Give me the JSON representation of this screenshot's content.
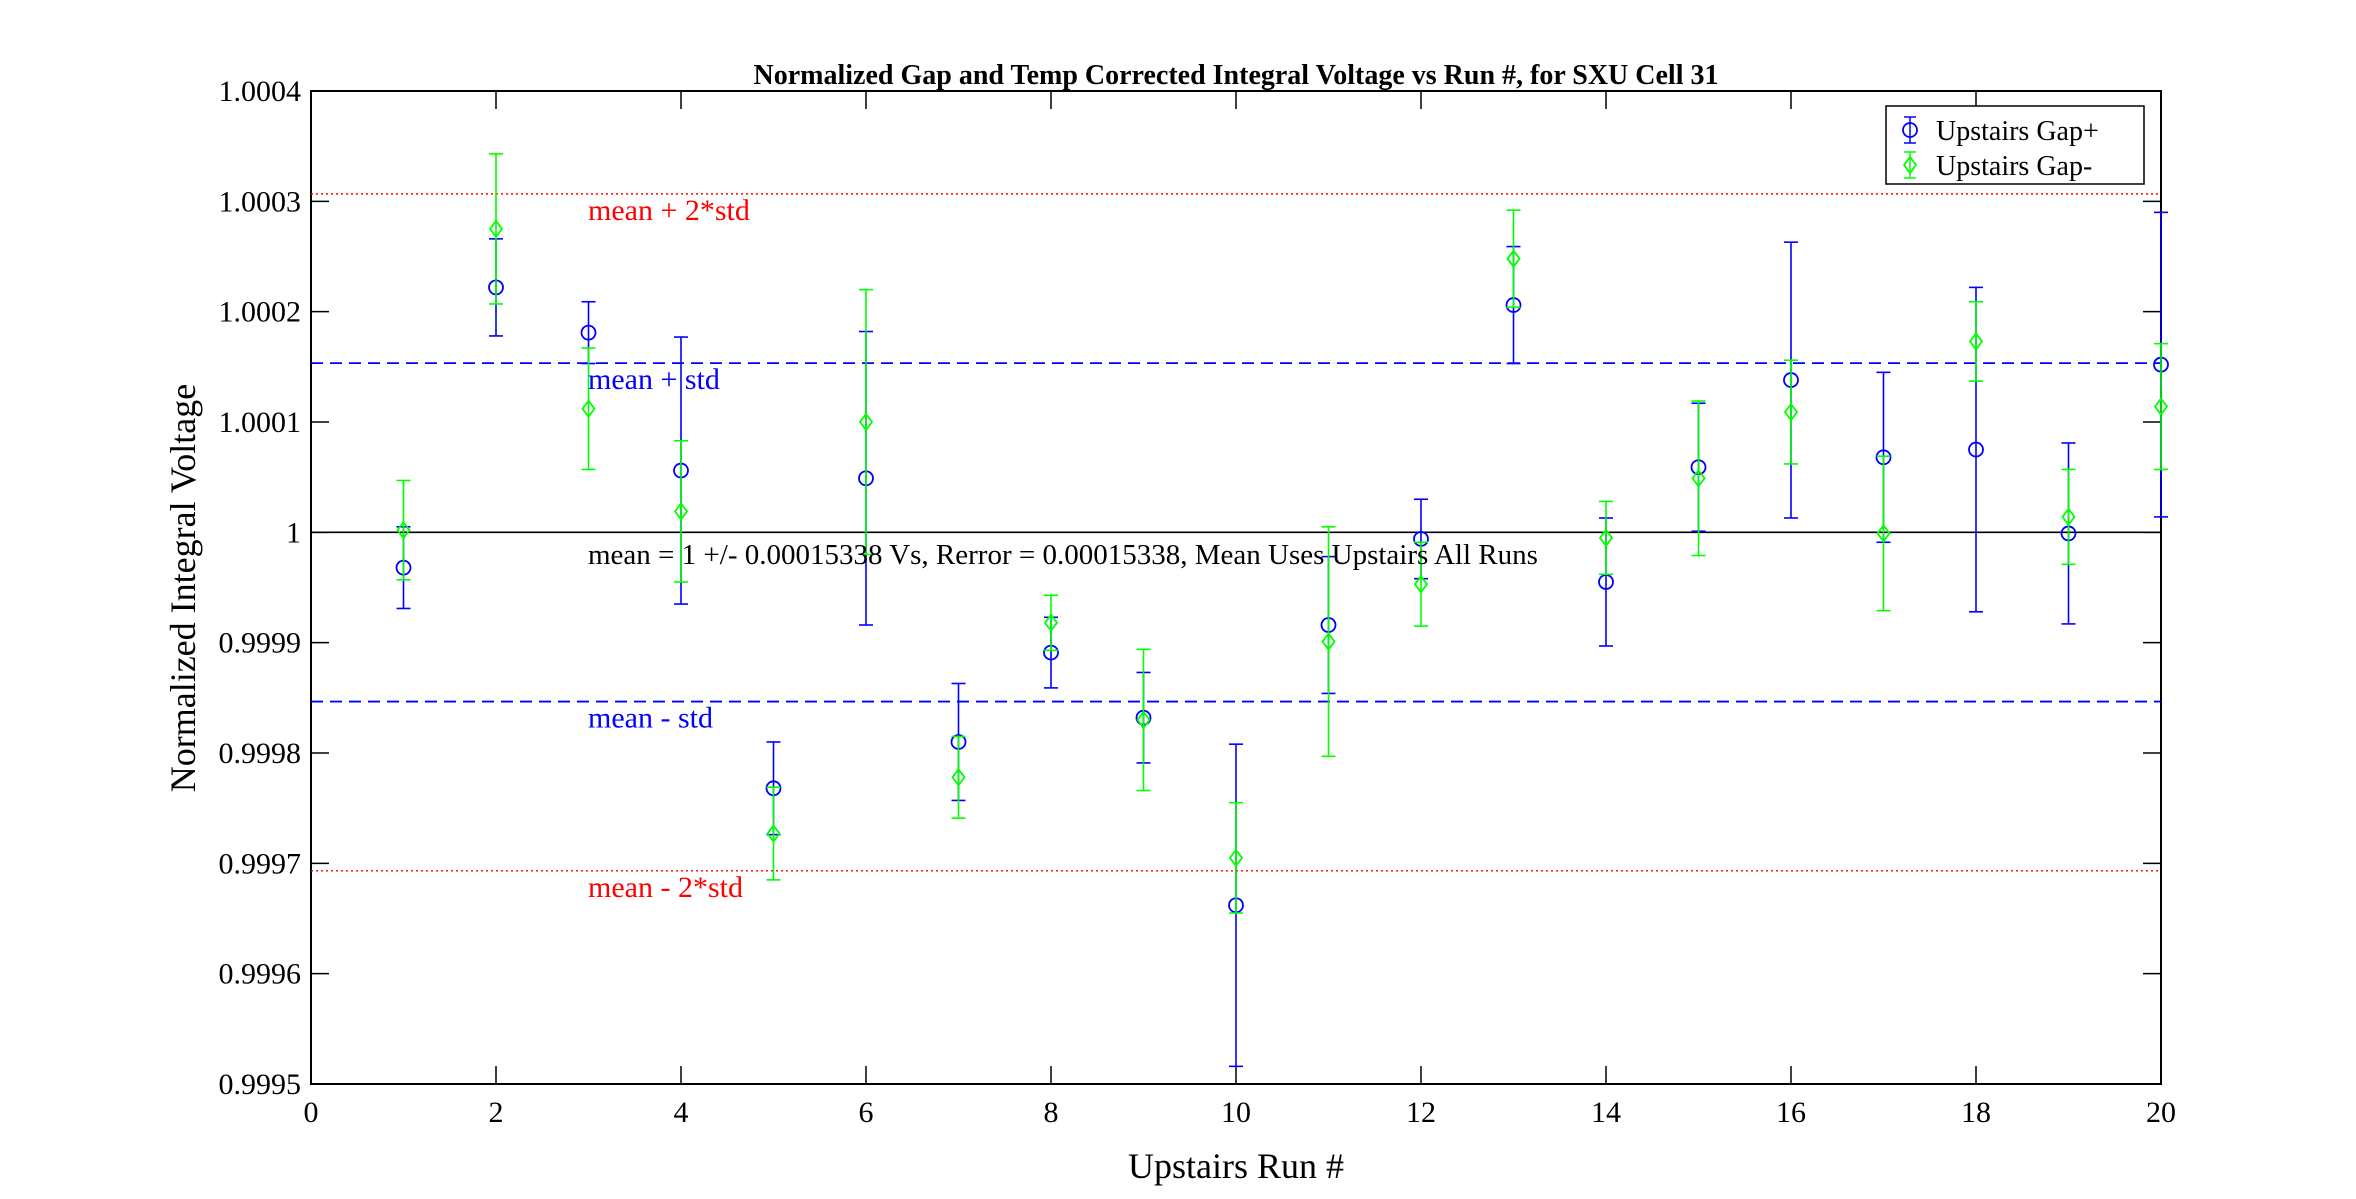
{
  "chart_data": {
    "type": "scatter",
    "title": "Normalized Gap and Temp Corrected Integral Voltage vs Run #, for SXU Cell 31",
    "xlabel": "Upstairs Run #",
    "ylabel": "Normalized Integral Voltage",
    "xlim": [
      0,
      20
    ],
    "ylim": [
      0.9995,
      1.0004
    ],
    "x_ticks": [
      0,
      2,
      4,
      6,
      8,
      10,
      12,
      14,
      16,
      18,
      20
    ],
    "x_tick_labels": [
      "0",
      "2",
      "4",
      "6",
      "8",
      "10",
      "12",
      "14",
      "16",
      "18",
      "20"
    ],
    "y_ticks": [
      0.9995,
      0.9996,
      0.9997,
      0.9998,
      0.9999,
      1.0,
      1.0001,
      1.0002,
      1.0003,
      1.0004
    ],
    "y_tick_labels": [
      "0.9995",
      "0.9996",
      "0.9997",
      "0.9998",
      "0.9999",
      "1",
      "1.0001",
      "1.0002",
      "1.0003",
      "1.0004"
    ],
    "grid": false,
    "legend_position": "top-right",
    "series": [
      {
        "name": "Upstairs Gap+",
        "color": "#0000ff",
        "marker": "circle",
        "x": [
          1,
          2,
          3,
          4,
          5,
          6,
          7,
          8,
          9,
          10,
          11,
          12,
          13,
          14,
          15,
          16,
          17,
          18,
          19,
          20
        ],
        "y": [
          0.999968,
          1.000222,
          1.000181,
          1.000056,
          0.999768,
          1.000049,
          0.99981,
          0.999891,
          0.999832,
          0.999662,
          0.999916,
          0.999994,
          1.000206,
          0.999955,
          1.000059,
          1.000138,
          1.000068,
          1.000075,
          0.999999,
          1.000152
        ],
        "err": [
          3.7e-05,
          4.4e-05,
          2.8e-05,
          0.000121,
          4.2e-05,
          0.000133,
          5.3e-05,
          3.2e-05,
          4.1e-05,
          0.000146,
          6.2e-05,
          3.6e-05,
          5.3e-05,
          5.8e-05,
          5.8e-05,
          0.000125,
          7.7e-05,
          0.000147,
          8.2e-05,
          0.000138
        ]
      },
      {
        "name": "Upstairs Gap-",
        "color": "#00ff00",
        "marker": "diamond",
        "x": [
          1,
          2,
          3,
          4,
          5,
          6,
          7,
          8,
          9,
          10,
          11,
          12,
          13,
          14,
          15,
          16,
          17,
          18,
          19,
          20
        ],
        "y": [
          1.000002,
          1.000275,
          1.000112,
          1.000019,
          0.999727,
          1.0001,
          0.999778,
          0.999918,
          0.99983,
          0.999705,
          0.999901,
          0.999953,
          1.000248,
          0.999995,
          1.000049,
          1.000109,
          0.999999,
          1.000173,
          1.000014,
          1.000114
        ],
        "err": [
          4.5e-05,
          6.8e-05,
          5.5e-05,
          6.4e-05,
          4.2e-05,
          0.00012,
          3.7e-05,
          2.5e-05,
          6.4e-05,
          5e-05,
          0.000104,
          3.8e-05,
          4.4e-05,
          3.3e-05,
          7e-05,
          4.7e-05,
          7e-05,
          3.6e-05,
          4.3e-05,
          5.7e-05
        ]
      }
    ],
    "reference_lines": [
      {
        "y": 1.0,
        "style": "solid",
        "color": "#000000",
        "label": ""
      },
      {
        "y": 1.00015338,
        "style": "dashed",
        "color": "#0000ff",
        "label": "mean + std"
      },
      {
        "y": 0.99984662,
        "style": "dashed",
        "color": "#0000ff",
        "label": "mean - std"
      },
      {
        "y": 1.00030676,
        "style": "dotted",
        "color": "#ff0000",
        "label": "mean + 2*std"
      },
      {
        "y": 0.99969324,
        "style": "dotted",
        "color": "#ff0000",
        "label": "mean - 2*std"
      }
    ],
    "annotation": "mean = 1 +/- 0.00015338 Vs, Rerror = 0.00015338, Mean Uses Upstairs All Runs"
  }
}
